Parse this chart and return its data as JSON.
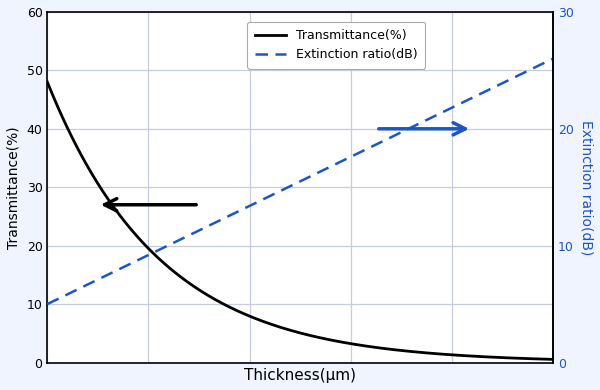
{
  "title": "",
  "xlabel": "Thickness(μm)",
  "ylabel_left": "Transmittance(%)",
  "ylabel_right": "Extinction ratio(dB)",
  "xlim": [
    0,
    1
  ],
  "ylim_left": [
    0,
    60
  ],
  "ylim_right": [
    0,
    30
  ],
  "yticks_left": [
    0,
    10,
    20,
    30,
    40,
    50,
    60
  ],
  "yticks_right": [
    0,
    10,
    20,
    30
  ],
  "legend_entries": [
    "Transmittance(%)",
    "Extinction ratio(dB)"
  ],
  "transmittance_color": "#000000",
  "extinction_color": "#1a56c4",
  "grid_color": "#c5cce0",
  "spine_color": "#000000",
  "background_color": "#ffffff",
  "fig_background": "#f0f4ff"
}
